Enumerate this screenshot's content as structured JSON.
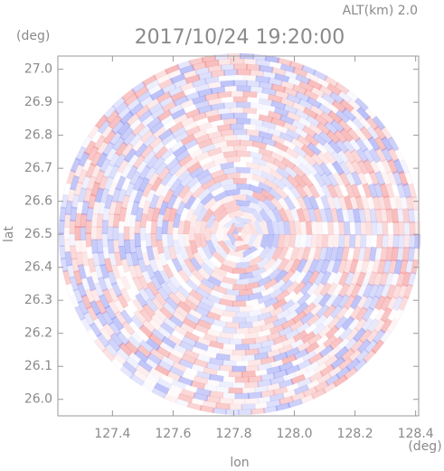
{
  "chart_data": {
    "type": "radar-ppi",
    "title": "2017/10/24 19:20:00",
    "subtitle": "ALT(km) 2.0",
    "x_label": "lon",
    "y_label": "lat",
    "x_unit": "(deg)",
    "y_unit": "(deg)",
    "xlim": [
      127.22,
      128.41
    ],
    "ylim": [
      25.95,
      27.04
    ],
    "xticks": [
      127.4,
      127.6,
      127.8,
      {
        "value": 128.0,
        "label": "128.0"
      },
      128.2,
      128.4
    ],
    "yticks": [
      {
        "value": 26.0,
        "label": "26.0"
      },
      26.1,
      26.2,
      26.3,
      26.4,
      26.5,
      26.6,
      26.7,
      26.8,
      26.9,
      {
        "value": 27.0,
        "label": "27.0"
      }
    ]
  }
}
